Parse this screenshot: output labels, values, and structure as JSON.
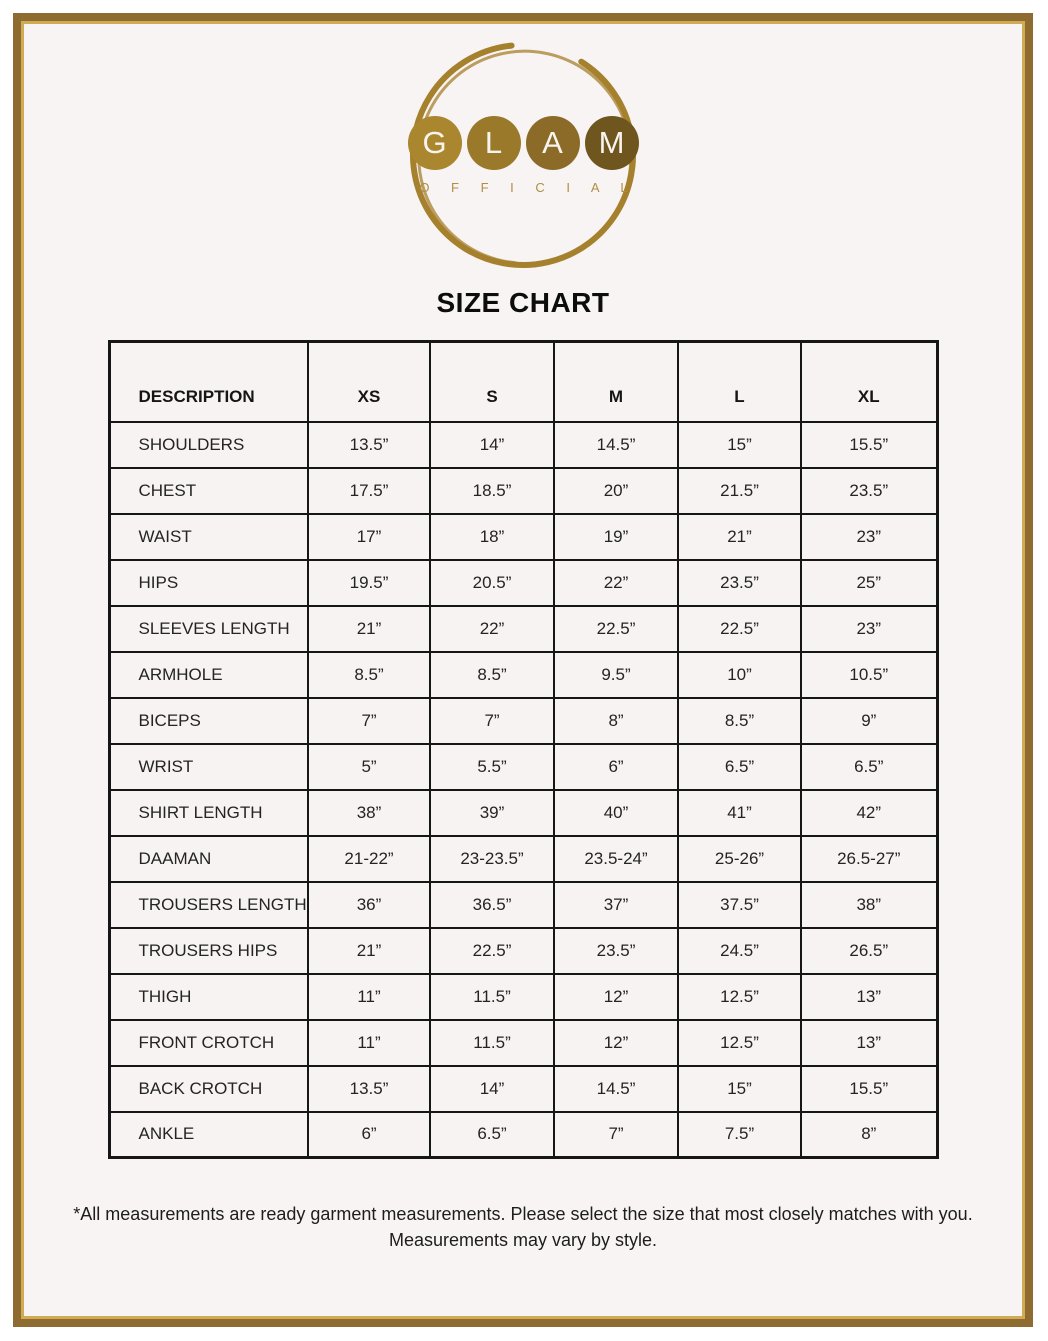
{
  "appearance": {
    "frame_border_color": "#8e6c31",
    "frame_inner_line_color": "#cfab53",
    "content_background": "#f8f4f3",
    "table_border_color": "#161616",
    "logo_ring_color": "#a5802d",
    "logo_subtitle_color": "#b08f45"
  },
  "logo": {
    "letters": [
      "G",
      "L",
      "A",
      "M"
    ],
    "letter_circle_colors": [
      "#aa862f",
      "#9b792b",
      "#8b6b27",
      "#6f551e"
    ],
    "subtitle": "O F F I C I A L"
  },
  "title": "SIZE CHART",
  "table": {
    "columns": [
      "DESCRIPTION",
      "XS",
      "S",
      "M",
      "L",
      "XL"
    ],
    "rows": [
      {
        "label": "SHOULDERS",
        "values": [
          "13.5”",
          "14”",
          "14.5”",
          "15”",
          "15.5”"
        ]
      },
      {
        "label": "CHEST",
        "values": [
          "17.5”",
          "18.5”",
          "20”",
          "21.5”",
          "23.5”"
        ]
      },
      {
        "label": "WAIST",
        "values": [
          "17”",
          "18”",
          "19”",
          "21”",
          "23”"
        ]
      },
      {
        "label": "HIPS",
        "values": [
          "19.5”",
          "20.5”",
          "22”",
          "23.5”",
          "25”"
        ]
      },
      {
        "label": "SLEEVES LENGTH",
        "values": [
          "21”",
          "22”",
          "22.5”",
          "22.5”",
          "23”"
        ]
      },
      {
        "label": "ARMHOLE",
        "values": [
          "8.5”",
          "8.5”",
          "9.5”",
          "10”",
          "10.5”"
        ]
      },
      {
        "label": "BICEPS",
        "values": [
          "7”",
          "7”",
          "8”",
          "8.5”",
          "9”"
        ]
      },
      {
        "label": "WRIST",
        "values": [
          "5”",
          "5.5”",
          "6”",
          "6.5”",
          "6.5”"
        ]
      },
      {
        "label": "SHIRT LENGTH",
        "values": [
          "38”",
          "39”",
          "40”",
          "41”",
          "42”"
        ]
      },
      {
        "label": "DAAMAN",
        "values": [
          "21-22”",
          "23-23.5”",
          "23.5-24”",
          "25-26”",
          "26.5-27”"
        ]
      },
      {
        "label": "TROUSERS LENGTH",
        "values": [
          "36”",
          "36.5”",
          "37”",
          "37.5”",
          "38”"
        ]
      },
      {
        "label": "TROUSERS HIPS",
        "values": [
          "21”",
          "22.5”",
          "23.5”",
          "24.5”",
          "26.5”"
        ]
      },
      {
        "label": "THIGH",
        "values": [
          "11”",
          "11.5”",
          "12”",
          "12.5”",
          "13”"
        ]
      },
      {
        "label": "FRONT CROTCH",
        "values": [
          "11”",
          "11.5”",
          "12”",
          "12.5”",
          "13”"
        ]
      },
      {
        "label": "BACK CROTCH",
        "values": [
          "13.5”",
          "14”",
          "14.5”",
          "15”",
          "15.5”"
        ]
      },
      {
        "label": "ANKLE",
        "values": [
          "6”",
          "6.5”",
          "7”",
          "7.5”",
          "8”"
        ]
      }
    ]
  },
  "footnote": {
    "line1": "*All measurements are ready garment measurements. Please select the size that most closely matches with you.",
    "line2": "Measurements may vary by style."
  }
}
